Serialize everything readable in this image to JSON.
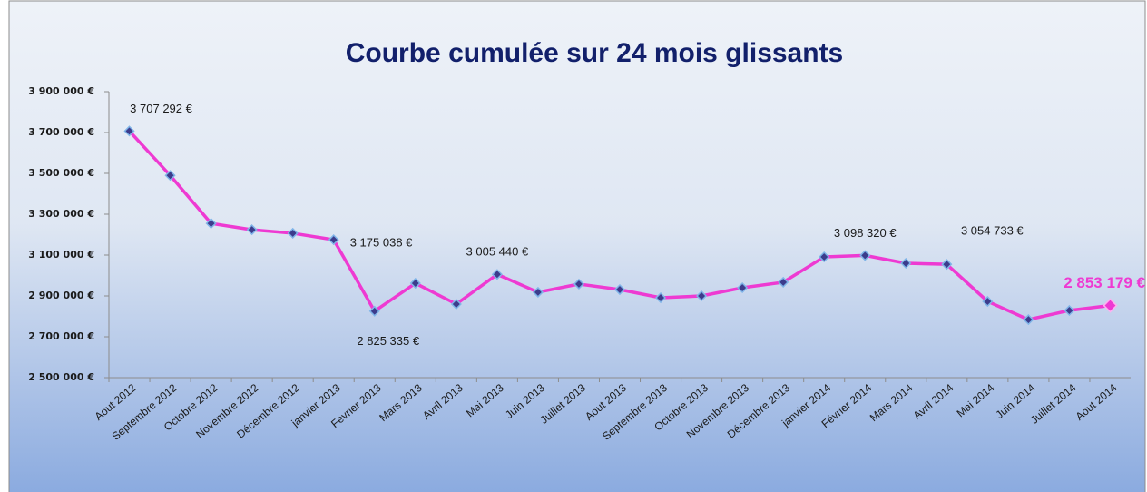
{
  "chart_data": {
    "type": "line",
    "title": "Courbe cumulée sur 24 mois glissants",
    "categories": [
      "Aout 2012",
      "Septembre 2012",
      "Octobre 2012",
      "Novembre 2012",
      "Décembre 2012",
      "janvier 2013",
      "Février 2013",
      "Mars 2013",
      "Avril 2013",
      "Mai 2013",
      "Juin 2013",
      "Juillet 2013",
      "Aout 2013",
      "Septembre 2013",
      "Octobre 2013",
      "Novembre 2013",
      "Décembre 2013",
      "janvier 2014",
      "Février 2014",
      "Mars 2014",
      "Avril 2014",
      "Mai 2014",
      "Juin 2014",
      "Juillet 2014",
      "Aout 2014"
    ],
    "series": [
      {
        "color": "#ee3ad2",
        "values": [
          3707292,
          3490000,
          3255000,
          3224000,
          3207000,
          3175038,
          2825335,
          2962000,
          2860000,
          3005440,
          2918000,
          2958000,
          2931000,
          2891000,
          2900000,
          2940000,
          2967000,
          3091000,
          3098320,
          3060000,
          3054733,
          2873000,
          2784000,
          2829000,
          2853179
        ],
        "value_labels": [
          "3 707 292 €",
          null,
          null,
          null,
          null,
          "3 175 038 €",
          "2 825 335 €",
          null,
          null,
          "3 005 440 €",
          null,
          null,
          null,
          null,
          null,
          null,
          null,
          null,
          "3 098 320 €",
          null,
          "3 054 733 €",
          null,
          null,
          null,
          "2 853 179 €"
        ]
      }
    ],
    "ylim": [
      2500000,
      3900000
    ],
    "yticks": [
      {
        "value": 2500000,
        "label": "2 500 000 €"
      },
      {
        "value": 2700000,
        "label": "2 700 000 €"
      },
      {
        "value": 2900000,
        "label": "2 900 000 €"
      },
      {
        "value": 3100000,
        "label": "3 100 000 €"
      },
      {
        "value": 3300000,
        "label": "3 300 000 €"
      },
      {
        "value": 3500000,
        "label": "3 500 000 €"
      },
      {
        "value": 3700000,
        "label": "3 700 000 €"
      },
      {
        "value": 3900000,
        "label": "3 900 000 €"
      }
    ],
    "grid": false,
    "legend": false
  }
}
